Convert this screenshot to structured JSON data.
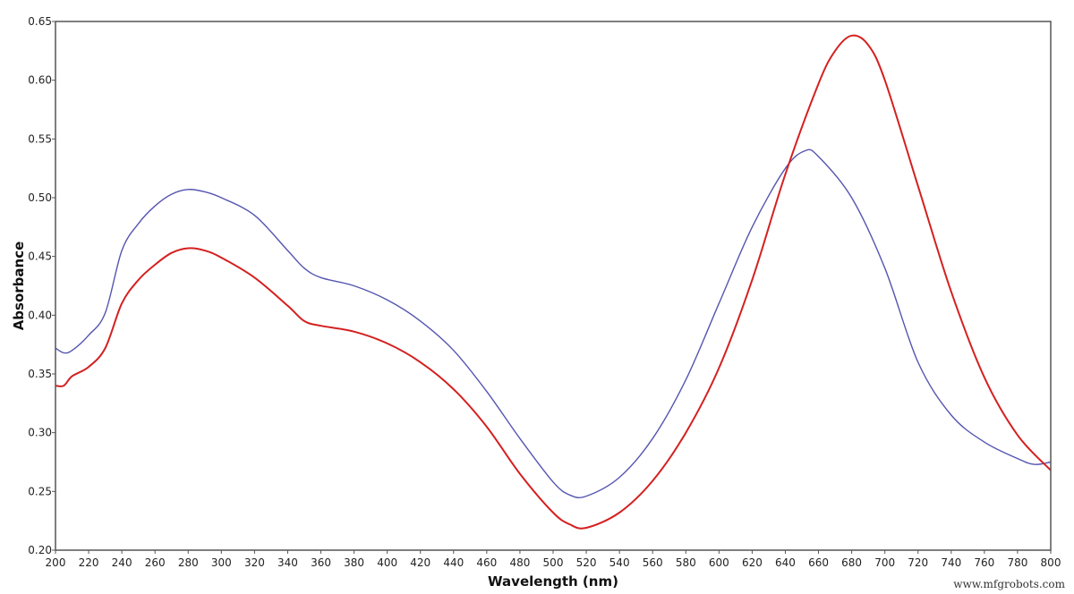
{
  "chart_data": {
    "type": "line",
    "title": "",
    "xlabel": "Wavelength (nm)",
    "ylabel": "Absorbance",
    "xlim": [
      200,
      800
    ],
    "ylim": [
      0.2,
      0.65
    ],
    "grid": false,
    "legend": null,
    "x_ticks": [
      200,
      220,
      240,
      260,
      280,
      300,
      320,
      340,
      360,
      380,
      400,
      420,
      440,
      460,
      480,
      500,
      520,
      540,
      560,
      580,
      600,
      620,
      640,
      660,
      680,
      700,
      720,
      740,
      760,
      780,
      800
    ],
    "y_ticks": [
      "0.20",
      "0.25",
      "0.30",
      "0.35",
      "0.40",
      "0.45",
      "0.50",
      "0.55",
      "0.60",
      "0.65"
    ],
    "series": [
      {
        "name": "blue-spectrum",
        "color": "#5555b0",
        "x": [
          200,
          205,
          210,
          220,
          230,
          240,
          250,
          260,
          270,
          280,
          290,
          300,
          320,
          340,
          350,
          360,
          380,
          400,
          420,
          440,
          460,
          480,
          500,
          510,
          520,
          540,
          560,
          580,
          600,
          620,
          640,
          652,
          660,
          680,
          700,
          720,
          740,
          760,
          780,
          790,
          800
        ],
        "values": [
          0.372,
          0.368,
          0.37,
          0.383,
          0.402,
          0.455,
          0.478,
          0.493,
          0.503,
          0.507,
          0.505,
          0.5,
          0.485,
          0.455,
          0.44,
          0.432,
          0.425,
          0.413,
          0.395,
          0.37,
          0.335,
          0.295,
          0.258,
          0.247,
          0.246,
          0.262,
          0.295,
          0.345,
          0.41,
          0.475,
          0.525,
          0.54,
          0.535,
          0.5,
          0.44,
          0.36,
          0.315,
          0.292,
          0.278,
          0.273,
          0.275
        ]
      },
      {
        "name": "red-spectrum",
        "color": "#d42020",
        "x": [
          200,
          205,
          210,
          220,
          230,
          240,
          250,
          260,
          270,
          280,
          290,
          300,
          320,
          340,
          350,
          360,
          380,
          400,
          420,
          440,
          460,
          480,
          500,
          510,
          520,
          540,
          560,
          580,
          600,
          620,
          640,
          660,
          670,
          680,
          690,
          700,
          720,
          740,
          760,
          780,
          800
        ],
        "values": [
          0.34,
          0.34,
          0.348,
          0.356,
          0.372,
          0.41,
          0.43,
          0.443,
          0.453,
          0.457,
          0.455,
          0.449,
          0.432,
          0.408,
          0.395,
          0.391,
          0.386,
          0.376,
          0.36,
          0.337,
          0.305,
          0.265,
          0.232,
          0.222,
          0.219,
          0.232,
          0.259,
          0.3,
          0.355,
          0.43,
          0.52,
          0.597,
          0.625,
          0.638,
          0.63,
          0.6,
          0.51,
          0.42,
          0.347,
          0.298,
          0.268
        ]
      }
    ]
  },
  "labels": {
    "xlabel": "Wavelength (nm)",
    "ylabel": "Absorbance",
    "watermark": "www.mfgrobots.com"
  }
}
